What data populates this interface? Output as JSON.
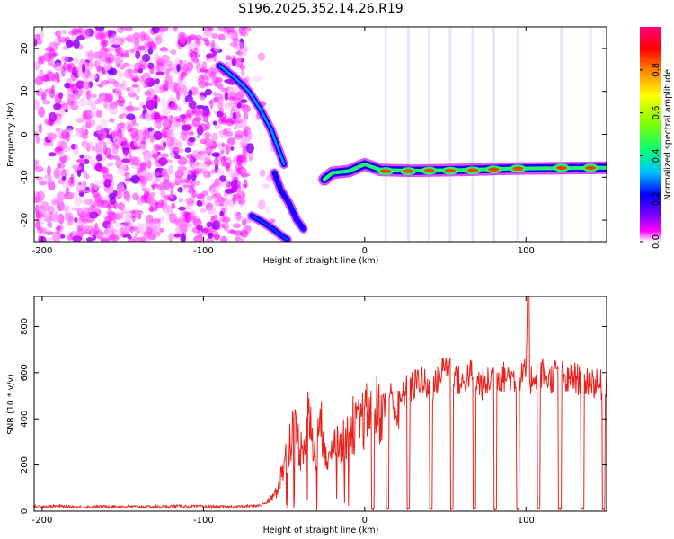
{
  "title": "S196.2025.352.14.26.R19",
  "colors": {
    "trace": "#e8231e",
    "blob_purple": "#8a2be2",
    "colormap": [
      "#ffffff",
      "#ff00ff",
      "#8000ff",
      "#0000ff",
      "#00bfff",
      "#00ff80",
      "#80ff00",
      "#ffff00",
      "#ff8000",
      "#ff0000",
      "#ff0080"
    ]
  },
  "chart_data": [
    {
      "type": "heatmap",
      "title": "S196.2025.352.14.26.R19",
      "xlabel": "Height of straight line (km)",
      "ylabel": "Frequency (Hz)",
      "xlim": [
        -205,
        150
      ],
      "ylim": [
        -25,
        25
      ],
      "xticks": [
        {
          "value": -200,
          "label": "-200"
        },
        {
          "value": -100,
          "label": "-100"
        },
        {
          "value": 0,
          "label": "0"
        },
        {
          "value": 100,
          "label": "100"
        }
      ],
      "yticks": [
        {
          "value": -20,
          "label": "-20"
        },
        {
          "value": -10,
          "label": "-10"
        },
        {
          "value": 0,
          "label": "0"
        },
        {
          "value": 10,
          "label": "10"
        },
        {
          "value": 20,
          "label": "20"
        }
      ],
      "colorbar": {
        "label": "Normalized spectral amplitude",
        "range": [
          0.0,
          1.0
        ],
        "ticks": [
          {
            "value": 0.0,
            "label": "0.0"
          },
          {
            "value": 0.2,
            "label": "0.2"
          },
          {
            "value": 0.4,
            "label": "0.4"
          },
          {
            "value": 0.6,
            "label": "0.6"
          },
          {
            "value": 0.8,
            "label": "0.8"
          }
        ]
      },
      "noise_region": {
        "x_from": -205,
        "x_to": -70,
        "freq_from": -25,
        "freq_to": 25,
        "typical_amplitude": 0.1
      },
      "features": [
        {
          "name": "upper_descending_branch",
          "points": [
            [
              -90,
              16
            ],
            [
              -80,
              13
            ],
            [
              -72,
              10
            ],
            [
              -65,
              6
            ],
            [
              -58,
              1
            ],
            [
              -54,
              -3
            ],
            [
              -50,
              -7
            ]
          ],
          "amplitude": 0.3
        },
        {
          "name": "lower_ascending_branch",
          "points": [
            [
              -70,
              -19
            ],
            [
              -63,
              -20.5
            ],
            [
              -57,
              -22
            ],
            [
              -52,
              -23.5
            ],
            [
              -48,
              -24.5
            ]
          ],
          "amplitude": 0.25
        },
        {
          "name": "converging_arcs",
          "points": [
            [
              -56,
              -9
            ],
            [
              -52,
              -13
            ],
            [
              -47,
              -16
            ],
            [
              -42,
              -20
            ],
            [
              -38,
              -22
            ]
          ],
          "amplitude": 0.2
        },
        {
          "name": "main_tone",
          "points": [
            [
              -25,
              -10.5
            ],
            [
              -20,
              -9
            ],
            [
              -10,
              -8.6
            ],
            [
              0,
              -7
            ],
            [
              10,
              -8.3
            ],
            [
              30,
              -8.5
            ],
            [
              60,
              -8.3
            ],
            [
              90,
              -8
            ],
            [
              120,
              -7.9
            ],
            [
              150,
              -7.8
            ]
          ],
          "amplitude": 0.45
        },
        {
          "name": "tone_peaks",
          "points": [
            [
              13,
              -8.6
            ],
            [
              27,
              -8.6
            ],
            [
              40,
              -8.5
            ],
            [
              53,
              -8.5
            ],
            [
              67,
              -8.4
            ],
            [
              80,
              -8.2
            ],
            [
              95,
              -8
            ],
            [
              122,
              -7.8
            ],
            [
              140,
              -7.8
            ]
          ],
          "amplitude": 0.85
        }
      ]
    },
    {
      "type": "line",
      "title": "",
      "xlabel": "Height of straight line (km)",
      "ylabel": "SNR (10 * v/v)",
      "xlim": [
        -205,
        150
      ],
      "ylim": [
        0,
        930
      ],
      "xticks": [
        {
          "value": -200,
          "label": "-200"
        },
        {
          "value": -100,
          "label": "-100"
        },
        {
          "value": 0,
          "label": "0"
        },
        {
          "value": 100,
          "label": "100"
        }
      ],
      "yticks": [
        {
          "value": 0,
          "label": "0"
        },
        {
          "value": 200,
          "label": "200"
        },
        {
          "value": 400,
          "label": "400"
        },
        {
          "value": 600,
          "label": "600"
        },
        {
          "value": 800,
          "label": "800"
        }
      ],
      "series": [
        {
          "name": "SNR",
          "x": [
            -205,
            -190,
            -175,
            -160,
            -145,
            -130,
            -115,
            -100,
            -85,
            -75,
            -65,
            -60,
            -55,
            -50,
            -45,
            -42,
            -40,
            -38,
            -35,
            -32,
            -30,
            -28,
            -25,
            -22,
            -20,
            -18,
            -15,
            -12,
            -10,
            -8,
            -5,
            -2,
            0,
            5,
            10,
            15,
            20,
            25,
            30,
            35,
            40,
            45,
            50,
            55,
            60,
            65,
            70,
            75,
            80,
            85,
            90,
            95,
            100,
            101,
            102,
            105,
            110,
            115,
            120,
            125,
            130,
            135,
            140,
            145,
            150
          ],
          "y": [
            20,
            22,
            18,
            21,
            20,
            19,
            22,
            20,
            19,
            21,
            25,
            40,
            80,
            200,
            350,
            330,
            260,
            300,
            410,
            280,
            240,
            380,
            320,
            190,
            300,
            360,
            260,
            320,
            330,
            380,
            350,
            390,
            400,
            460,
            430,
            520,
            430,
            520,
            540,
            580,
            510,
            560,
            640,
            610,
            540,
            600,
            560,
            540,
            600,
            580,
            590,
            560,
            600,
            930,
            560,
            590,
            600,
            570,
            610,
            560,
            580,
            560,
            570,
            540,
            560
          ]
        }
      ],
      "dropouts": [
        {
          "x_center": 5,
          "depth_to": 5
        },
        {
          "x_center": 14,
          "depth_to": 5
        },
        {
          "x_center": 27,
          "depth_to": 5
        },
        {
          "x_center": 41,
          "depth_to": 5
        },
        {
          "x_center": 54,
          "depth_to": 5
        },
        {
          "x_center": 68,
          "depth_to": 5
        },
        {
          "x_center": 81,
          "depth_to": 5
        },
        {
          "x_center": 95,
          "depth_to": 5
        },
        {
          "x_center": 108,
          "depth_to": 5
        },
        {
          "x_center": 121,
          "depth_to": 5
        },
        {
          "x_center": 135,
          "depth_to": 5
        },
        {
          "x_center": 148,
          "depth_to": 5
        }
      ]
    }
  ]
}
